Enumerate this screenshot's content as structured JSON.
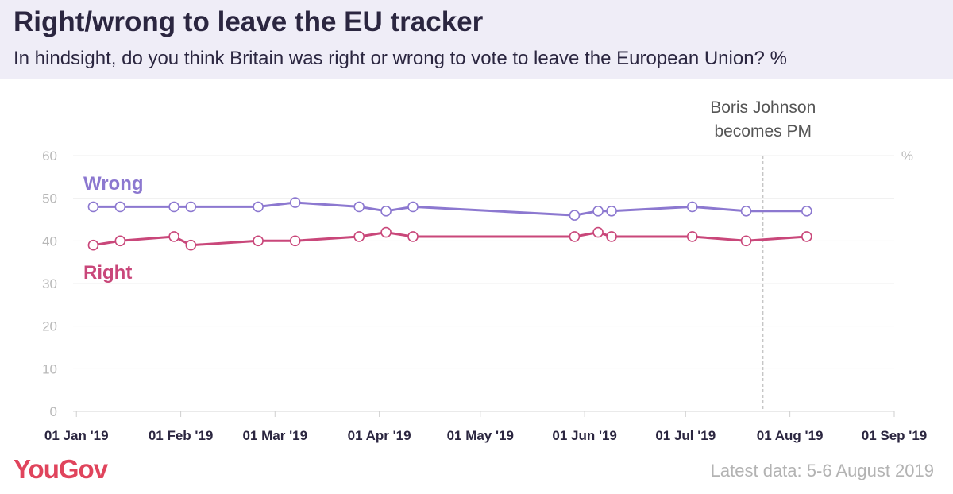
{
  "title": "Right/wrong to leave the EU tracker",
  "subtitle": "In hindsight, do you think Britain was right or wrong to vote to leave the European Union? %",
  "logo": "YouGov",
  "footnote": "Latest data: 5-6 August 2019",
  "colors": {
    "wrong": "#8c78d0",
    "right": "#c9477a",
    "header_bg": "#efedf7",
    "logo": "#e0445c"
  },
  "chart_data": {
    "type": "line",
    "title": "Right/wrong to leave the EU tracker",
    "ylabel": "%",
    "ylim": [
      0,
      60
    ],
    "yticks": [
      0,
      10,
      20,
      30,
      40,
      50,
      60
    ],
    "xlim": [
      "2018-12-31",
      "2019-09-01"
    ],
    "xticks": [
      {
        "date": "2019-01-01",
        "label": "01 Jan '19"
      },
      {
        "date": "2019-02-01",
        "label": "01 Feb '19"
      },
      {
        "date": "2019-03-01",
        "label": "01 Mar '19"
      },
      {
        "date": "2019-04-01",
        "label": "01 Apr '19"
      },
      {
        "date": "2019-05-01",
        "label": "01 May '19"
      },
      {
        "date": "2019-06-01",
        "label": "01 Jun '19"
      },
      {
        "date": "2019-07-01",
        "label": "01 Jul '19"
      },
      {
        "date": "2019-08-01",
        "label": "01 Aug '19"
      },
      {
        "date": "2019-09-01",
        "label": "01 Sep '19"
      }
    ],
    "grid": true,
    "series": [
      {
        "name": "Wrong",
        "color": "#8c78d0",
        "points": [
          {
            "x": "2019-01-06",
            "y": 48
          },
          {
            "x": "2019-01-14",
            "y": 48
          },
          {
            "x": "2019-01-30",
            "y": 48
          },
          {
            "x": "2019-02-04",
            "y": 48
          },
          {
            "x": "2019-02-24",
            "y": 48
          },
          {
            "x": "2019-03-07",
            "y": 49
          },
          {
            "x": "2019-03-26",
            "y": 48
          },
          {
            "x": "2019-04-03",
            "y": 47
          },
          {
            "x": "2019-04-11",
            "y": 48
          },
          {
            "x": "2019-05-29",
            "y": 46
          },
          {
            "x": "2019-06-05",
            "y": 47
          },
          {
            "x": "2019-06-09",
            "y": 47
          },
          {
            "x": "2019-07-03",
            "y": 48
          },
          {
            "x": "2019-07-19",
            "y": 47
          },
          {
            "x": "2019-08-06",
            "y": 47
          }
        ]
      },
      {
        "name": "Right",
        "color": "#c9477a",
        "points": [
          {
            "x": "2019-01-06",
            "y": 39
          },
          {
            "x": "2019-01-14",
            "y": 40
          },
          {
            "x": "2019-01-30",
            "y": 41
          },
          {
            "x": "2019-02-04",
            "y": 39
          },
          {
            "x": "2019-02-24",
            "y": 40
          },
          {
            "x": "2019-03-07",
            "y": 40
          },
          {
            "x": "2019-03-26",
            "y": 41
          },
          {
            "x": "2019-04-03",
            "y": 42
          },
          {
            "x": "2019-04-11",
            "y": 41
          },
          {
            "x": "2019-05-29",
            "y": 41
          },
          {
            "x": "2019-06-05",
            "y": 42
          },
          {
            "x": "2019-06-09",
            "y": 41
          },
          {
            "x": "2019-07-03",
            "y": 41
          },
          {
            "x": "2019-07-19",
            "y": 40
          },
          {
            "x": "2019-08-06",
            "y": 41
          }
        ]
      }
    ],
    "annotations": [
      {
        "x": "2019-07-24",
        "text_lines": [
          "Boris Johnson",
          "becomes PM"
        ]
      }
    ]
  }
}
